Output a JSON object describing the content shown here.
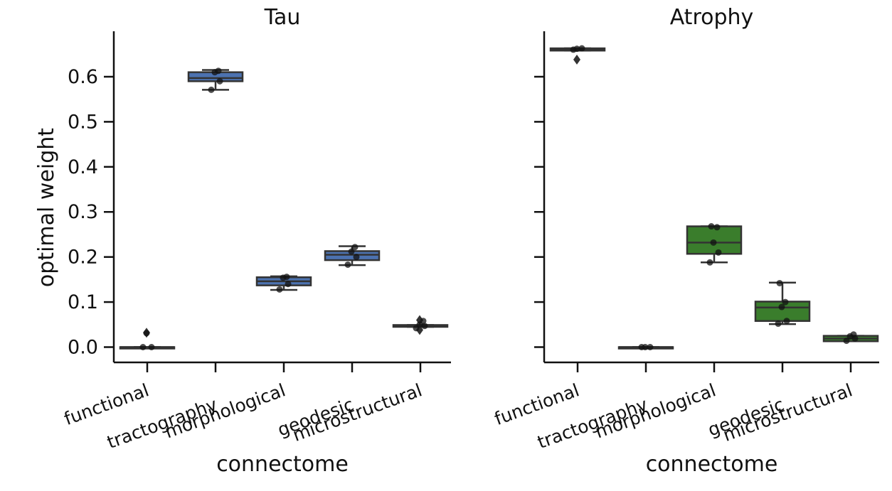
{
  "chart_data": [
    {
      "type": "box",
      "title": "Tau",
      "xlabel": "connectome",
      "ylabel": "optimal weight",
      "categories": [
        "functional",
        "tractography",
        "morphological",
        "geodesic",
        "microstructural"
      ],
      "color": "#4c72b0",
      "ylim": [
        -0.03,
        0.7
      ],
      "yticks": [
        "0.0",
        "0.1",
        "0.2",
        "0.3",
        "0.4",
        "0.5",
        "0.6"
      ],
      "boxes": [
        {
          "q1": 0.0,
          "median": 0.0,
          "q3": 0.0,
          "whislo": 0.0,
          "whishi": 0.0,
          "fliers": [
            0.032
          ],
          "points": [
            0.0,
            0.0,
            0.031
          ]
        },
        {
          "q1": 0.59,
          "median": 0.597,
          "q3": 0.61,
          "whislo": 0.571,
          "whishi": 0.615,
          "fliers": [],
          "points": [
            0.571,
            0.59,
            0.61,
            0.613
          ]
        },
        {
          "q1": 0.137,
          "median": 0.146,
          "q3": 0.155,
          "whislo": 0.127,
          "whishi": 0.157,
          "fliers": [],
          "points": [
            0.128,
            0.14,
            0.154,
            0.156
          ]
        },
        {
          "q1": 0.193,
          "median": 0.205,
          "q3": 0.213,
          "whislo": 0.182,
          "whishi": 0.224,
          "fliers": [],
          "points": [
            0.183,
            0.2,
            0.212,
            0.222
          ]
        },
        {
          "q1": 0.045,
          "median": 0.047,
          "q3": 0.049,
          "whislo": 0.045,
          "whishi": 0.049,
          "fliers": [
            0.06,
            0.038
          ],
          "points": [
            0.042,
            0.047,
            0.05,
            0.058
          ]
        }
      ]
    },
    {
      "type": "box",
      "title": "Atrophy",
      "xlabel": "connectome",
      "ylabel": "",
      "categories": [
        "functional",
        "tractography",
        "morphological",
        "geodesic",
        "microstructural"
      ],
      "color": "#3a7d2c",
      "ylim": [
        -0.03,
        0.7
      ],
      "yticks": [],
      "boxes": [
        {
          "q1": 0.658,
          "median": 0.661,
          "q3": 0.663,
          "whislo": 0.658,
          "whishi": 0.663,
          "fliers": [
            0.638
          ],
          "points": [
            0.66,
            0.663,
            0.662
          ]
        },
        {
          "q1": 0.0,
          "median": 0.0,
          "q3": 0.0,
          "whislo": 0.0,
          "whishi": 0.0,
          "fliers": [],
          "points": [
            0.0,
            0.0,
            0.0
          ]
        },
        {
          "q1": 0.207,
          "median": 0.232,
          "q3": 0.268,
          "whislo": 0.188,
          "whishi": 0.268,
          "fliers": [],
          "points": [
            0.188,
            0.21,
            0.232,
            0.266,
            0.268
          ]
        },
        {
          "q1": 0.058,
          "median": 0.088,
          "q3": 0.101,
          "whislo": 0.051,
          "whishi": 0.143,
          "fliers": [],
          "points": [
            0.052,
            0.058,
            0.089,
            0.1,
            0.142
          ]
        },
        {
          "q1": 0.013,
          "median": 0.019,
          "q3": 0.025,
          "whislo": 0.013,
          "whishi": 0.025,
          "fliers": [],
          "points": [
            0.014,
            0.019,
            0.024,
            0.028
          ]
        }
      ]
    }
  ]
}
